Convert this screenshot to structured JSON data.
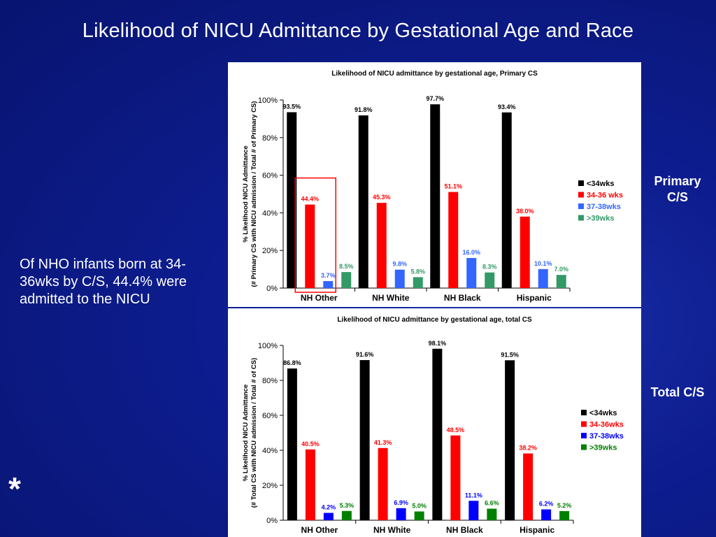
{
  "slide": {
    "title": "Likelihood of NICU Admittance by Gestational Age and Race",
    "note": "Of NHO infants born at 34-36wks by C/S, 44.4% were admitted to the NICU",
    "label_primary": "Primary C/S",
    "label_total": "Total C/S",
    "asterisk": "*"
  },
  "colors": {
    "slide_bg": "#0d1d8f",
    "lt34": "#000000",
    "w34_36": "#ff0000",
    "w37_38_primary": "#3366ff",
    "w39_primary": "#339966",
    "w37_38_total": "#0000ff",
    "w39_total": "#008000",
    "highlight_box": "#ff0000"
  },
  "chart_data": [
    {
      "type": "bar",
      "title": "Likelihood of NICU admittance by gestational age, Primary CS",
      "ylabel": "% Likelihood NICU Admittance (# Primary CS with NICU admission / Total # of Primary CS)",
      "ylabel_lines": [
        "% Likelihood NICU Admittance",
        "(# Primary CS with NICU admission / Total # of Primary CS)"
      ],
      "xlabel": "",
      "ylim": [
        0,
        100
      ],
      "yticks": [
        "0%",
        "20%",
        "40%",
        "60%",
        "80%",
        "100%"
      ],
      "legend_position": "right",
      "categories": [
        "NH Other",
        "NH White",
        "NH Black",
        "Hispanic"
      ],
      "series": [
        {
          "name": "<34wks",
          "color": "#000000",
          "values": [
            93.5,
            91.8,
            97.7,
            93.4
          ],
          "labels": [
            "93.5%",
            "91.8%",
            "97.7%",
            "93.4%"
          ]
        },
        {
          "name": "34-36 wks",
          "color": "#ff0000",
          "values": [
            44.4,
            45.3,
            51.1,
            38.0
          ],
          "labels": [
            "44.4%",
            "45.3%",
            "51.1%",
            "38.0%"
          ]
        },
        {
          "name": "37-38wks",
          "color": "#3366ff",
          "values": [
            3.7,
            9.8,
            16.0,
            10.1
          ],
          "labels": [
            "3.7%",
            "9.8%",
            "16.0%",
            "10.1%"
          ]
        },
        {
          "name": ">39wks",
          "color": "#339966",
          "values": [
            8.5,
            5.8,
            8.3,
            7.0
          ],
          "labels": [
            "8.5%",
            "5.8%",
            "8.3%",
            "7.0%"
          ]
        }
      ],
      "highlight": {
        "category": "NH Other",
        "series": [
          "34-36 wks",
          "37-38wks"
        ]
      }
    },
    {
      "type": "bar",
      "title": "Likelihood of NICU admittance by gestational age, total CS",
      "ylabel": "% Likelihood NICU Admittance (# Total CS with NICU admission / Total # of CS)",
      "ylabel_lines": [
        "% Likelihood NICU Admittance",
        "(# Total CS with NICU admission / Total # of CS)"
      ],
      "xlabel": "",
      "ylim": [
        0,
        100
      ],
      "yticks": [
        "0%",
        "20%",
        "40%",
        "60%",
        "80%",
        "100%"
      ],
      "legend_position": "right",
      "categories": [
        "NH Other",
        "NH White",
        "NH Black",
        "Hispanic"
      ],
      "series": [
        {
          "name": "<34wks",
          "color": "#000000",
          "values": [
            86.8,
            91.6,
            98.1,
            91.5
          ],
          "labels": [
            "86.8%",
            "91.6%",
            "98.1%",
            "91.5%"
          ]
        },
        {
          "name": "34-36wks",
          "color": "#ff0000",
          "values": [
            40.5,
            41.3,
            48.5,
            38.2
          ],
          "labels": [
            "40.5%",
            "41.3%",
            "48.5%",
            "38.2%"
          ]
        },
        {
          "name": "37-38wks",
          "color": "#0000ff",
          "values": [
            4.2,
            6.9,
            11.1,
            6.2
          ],
          "labels": [
            "4.2%",
            "6.9%",
            "11.1%",
            "6.2%"
          ]
        },
        {
          "name": ">39wks",
          "color": "#008000",
          "values": [
            5.3,
            5.0,
            6.6,
            5.2
          ],
          "labels": [
            "5.3%",
            "5.0%",
            "6.6%",
            "5.2%"
          ]
        }
      ]
    }
  ]
}
